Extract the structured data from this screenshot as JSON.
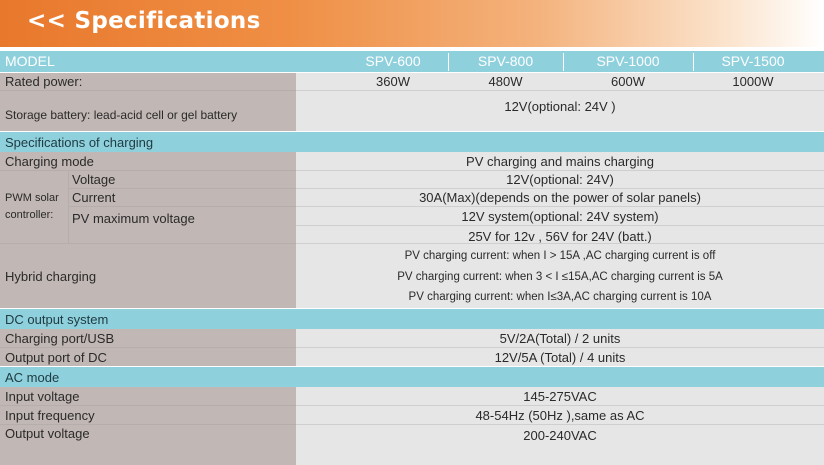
{
  "banner": {
    "title": "<< Specifications"
  },
  "header": {
    "label": "MODEL",
    "models": [
      "SPV-600",
      "SPV-800",
      "SPV-1000",
      "SPV-1500"
    ]
  },
  "rated_power": {
    "label": "Rated power:",
    "values": [
      "360W",
      "480W",
      "600W",
      "1000W"
    ]
  },
  "storage_battery": {
    "label": "Storage battery: lead-acid cell or gel battery",
    "value": "12V(optional: 24V )"
  },
  "charging_section": {
    "title": "Specifications of charging",
    "charging_mode": {
      "label": "Charging mode",
      "value": "PV charging and mains charging"
    },
    "pwm": {
      "label_line1": "PWM solar",
      "label_line2": "controller:",
      "voltage": {
        "label": "Voltage",
        "value": "12V(optional: 24V)"
      },
      "current": {
        "label": "Current",
        "value": "30A(Max)(depends on the power of solar panels)"
      },
      "pv_max": {
        "label": "PV maximum voltage",
        "value1": "12V system(optional: 24V system)",
        "value2": "25V for 12v , 56V for 24V (batt.)"
      }
    },
    "hybrid": {
      "label": "Hybrid charging",
      "lines": [
        "PV charging current: when I > 15A ,AC charging current is off",
        "PV charging current: when 3 < I ≤15A,AC charging current is 5A",
        "PV charging current: when I≤3A,AC charging current is 10A"
      ]
    }
  },
  "dc_section": {
    "title": "DC output system",
    "usb": {
      "label": "Charging port/USB",
      "value": "5V/2A(Total) / 2 units"
    },
    "dc_port": {
      "label": "Output port of DC",
      "value": "12V/5A (Total) / 4 units"
    }
  },
  "ac_section": {
    "title": "AC mode",
    "input_voltage": {
      "label": "Input voltage",
      "value": "145-275VAC"
    },
    "input_frequency": {
      "label": "Input frequency",
      "value": "48-54Hz (50Hz ),same as AC"
    },
    "output_voltage": {
      "label": "Output voltage",
      "value": "200-240VAC"
    }
  }
}
